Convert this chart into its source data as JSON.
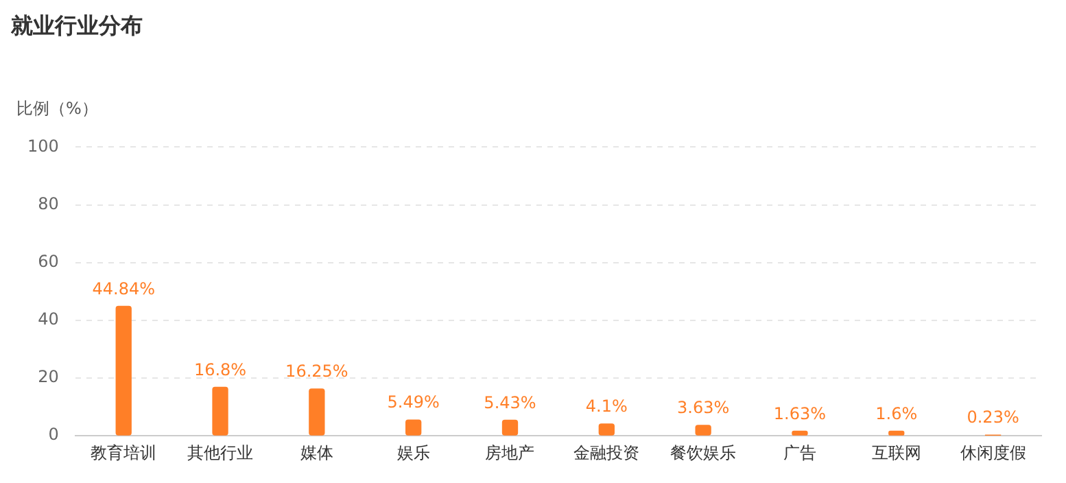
{
  "chart_data": {
    "type": "bar",
    "title": "就业行业分布",
    "ylabel": "比例（%）",
    "categories": [
      "教育培训",
      "其他行业",
      "媒体",
      "娱乐",
      "房地产",
      "金融投资",
      "餐饮娱乐",
      "广告",
      "互联网",
      "休闲度假"
    ],
    "values": [
      44.84,
      16.8,
      16.25,
      5.49,
      5.43,
      4.1,
      3.63,
      1.63,
      1.6,
      0.23
    ],
    "value_labels": [
      "44.84%",
      "16.8%",
      "16.25%",
      "5.49%",
      "5.43%",
      "4.1%",
      "3.63%",
      "1.63%",
      "1.6%",
      "0.23%"
    ],
    "color": "#ff7f27",
    "ylim": [
      0,
      100
    ],
    "yticks": [
      0,
      20,
      40,
      60,
      80,
      100
    ],
    "grid": "y",
    "legend": false
  }
}
